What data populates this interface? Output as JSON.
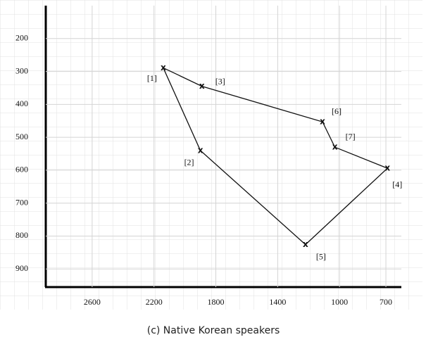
{
  "chart_data": {
    "type": "scatter",
    "caption": "(c) Native Korean speakers",
    "x": [
      2140,
      1890,
      1110,
      1030,
      690,
      1220,
      1900
    ],
    "values": [
      289,
      345,
      453,
      530,
      594,
      826,
      540
    ],
    "point_labels": [
      "[1]",
      "[3]",
      "[6]",
      "[7]",
      "[4]",
      "[5]",
      "[2]"
    ],
    "marker": "x",
    "closed": true,
    "color": "#111",
    "xlim": [
      2900,
      600
    ],
    "xticks": [
      2600,
      2200,
      1800,
      1400,
      1000,
      700
    ],
    "ylim": [
      955,
      100
    ],
    "yticks": [
      200,
      300,
      400,
      500,
      600,
      700,
      800,
      900
    ],
    "grid": true
  }
}
